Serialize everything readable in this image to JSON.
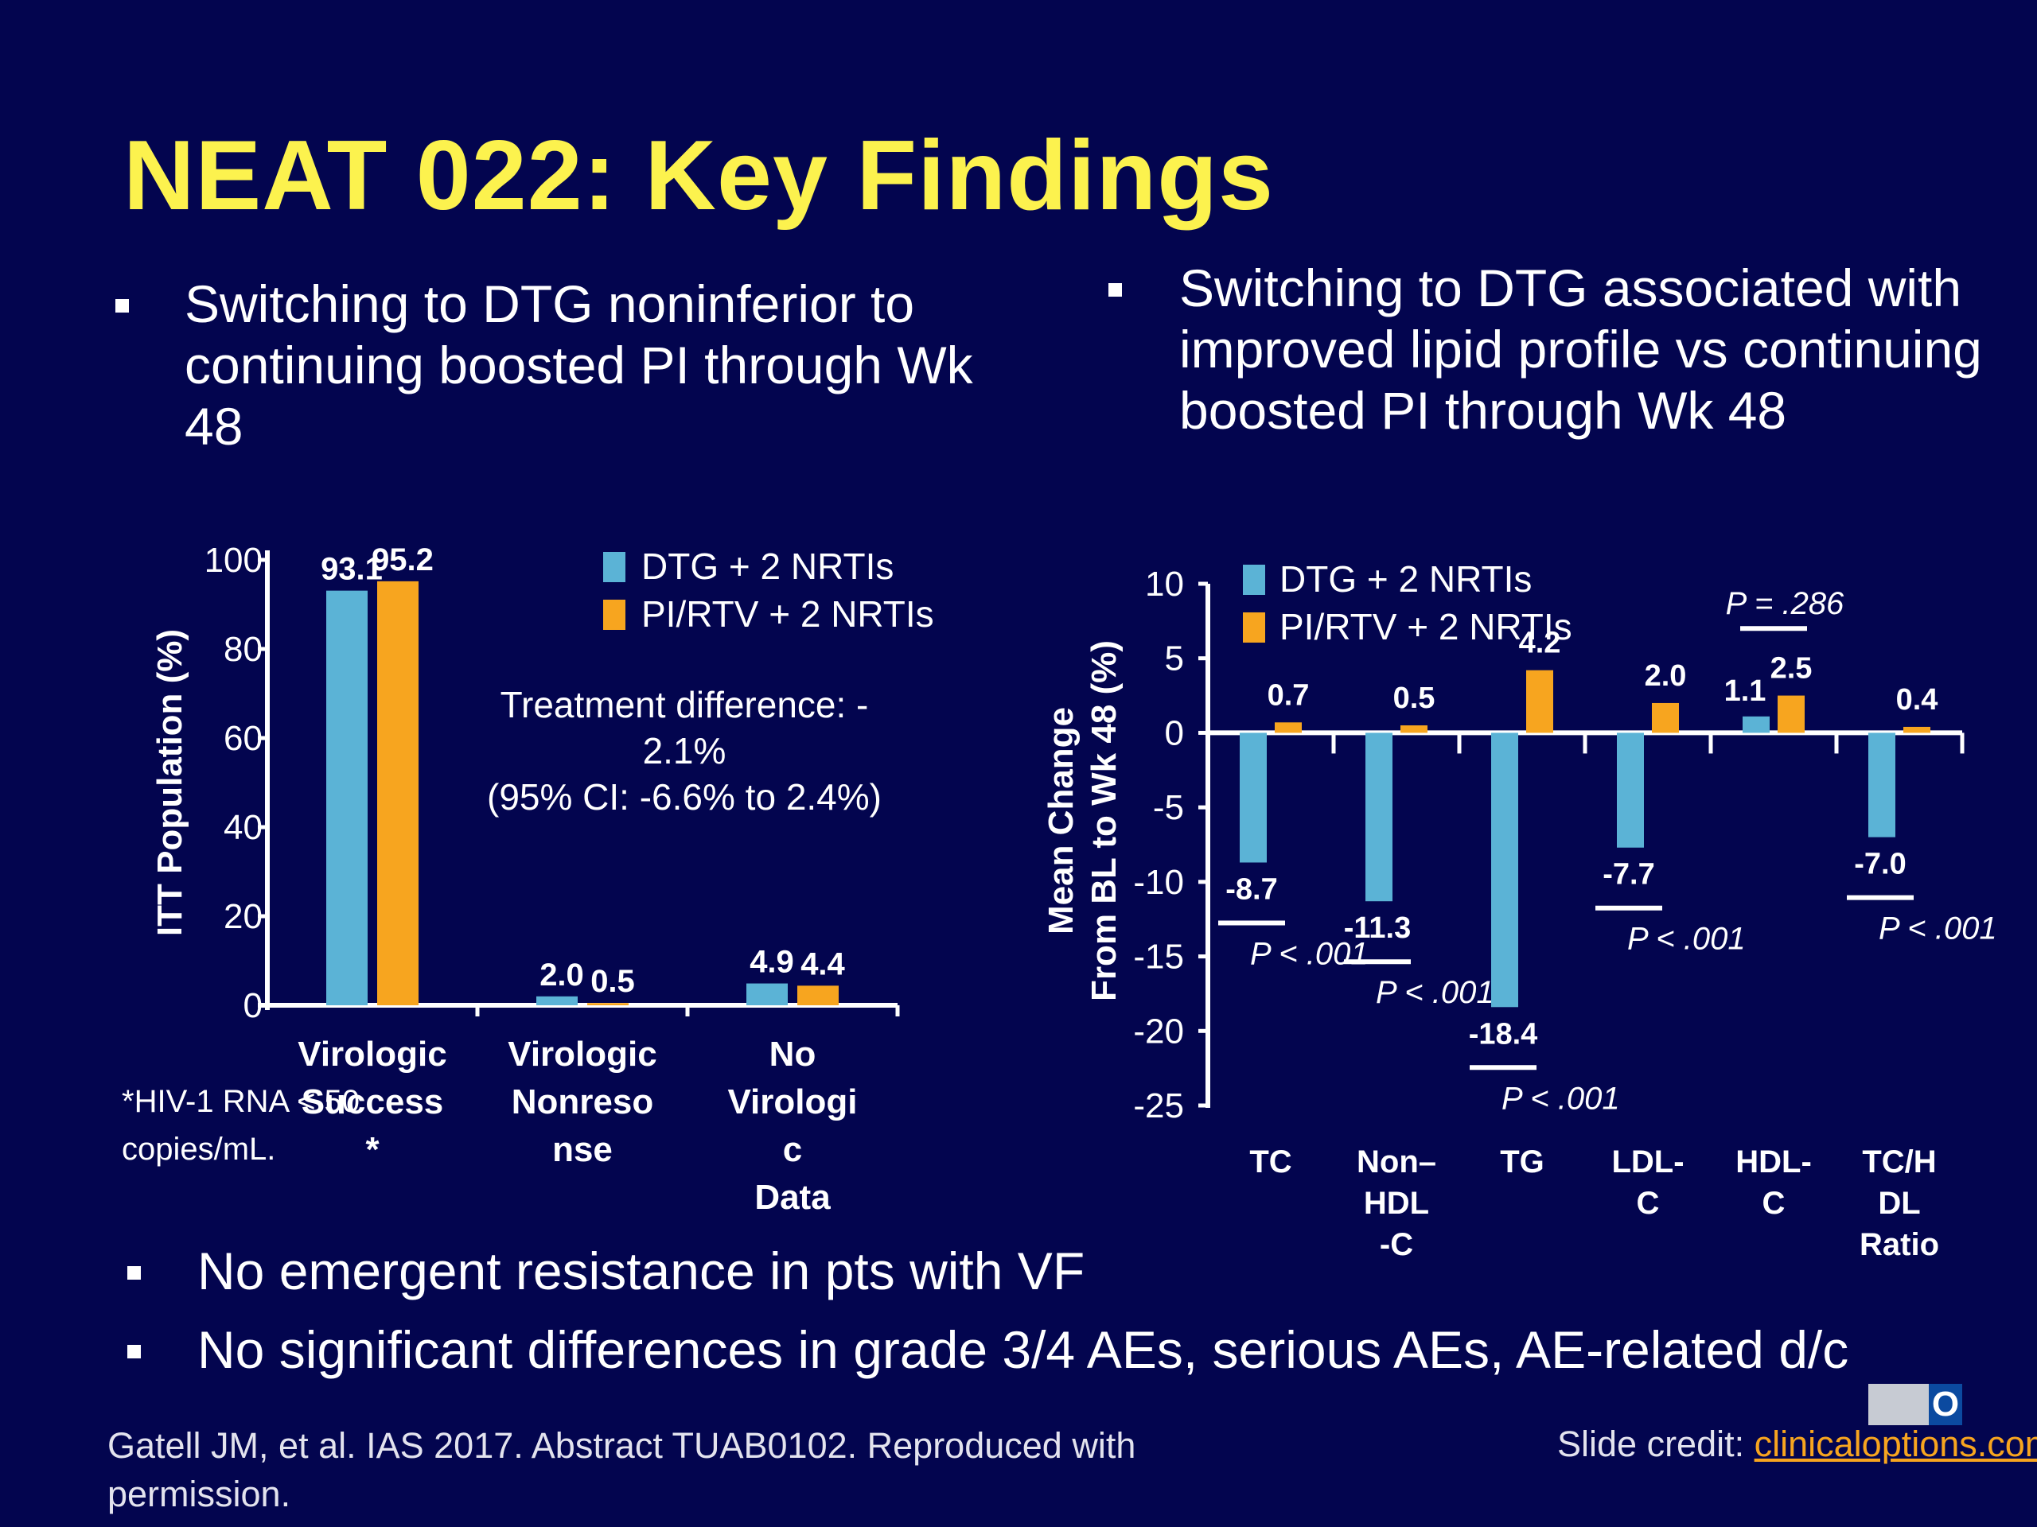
{
  "slide": {
    "title": "NEAT 022: Key Findings",
    "bullets": [
      "Switching to DTG noninferior to continuing boosted PI through Wk 48",
      "Switching to DTG associated with improved lipid profile vs continuing boosted PI through Wk 48",
      "No emergent resistance in pts with VF",
      "No significant differences in grade 3/4 AEs, serious AEs, AE-related d/c"
    ],
    "footnote": "*HIV-1 RNA < 50 copies/mL.",
    "citation": "Gatell JM, et al. IAS 2017. Abstract TUAB0102. Reproduced with permission.",
    "credit_label": "Slide credit: ",
    "credit_link": "clinicaloptions.com",
    "logo_text": "CCO"
  },
  "colors": {
    "background": "#03054f",
    "title": "#fcf24e",
    "dtg": "#5bb3d6",
    "pi": "#f7a51f",
    "text": "#ffffff"
  },
  "chart_data": [
    {
      "type": "bar",
      "ylabel": "ITT Population (%)",
      "ylim": [
        0,
        100
      ],
      "yticks": [
        0,
        20,
        40,
        60,
        80,
        100
      ],
      "categories": [
        "Virologic Success*",
        "Virologic Nonresponse",
        "No Virologic Data"
      ],
      "series": [
        {
          "name": "DTG + 2 NRTIs",
          "values": [
            93.1,
            2.0,
            4.9
          ],
          "labels": [
            "93.1",
            "2.0",
            "4.9"
          ]
        },
        {
          "name": "PI/RTV + 2 NRTIs",
          "values": [
            95.2,
            0.5,
            4.4
          ],
          "labels": [
            "95.2",
            "0.5",
            "4.4"
          ]
        }
      ],
      "annotation": "Treatment difference: -2.1% (95% CI: -6.6% to 2.4%)",
      "legend": "top-right"
    },
    {
      "type": "bar",
      "ylabel": "Mean Change From BL to Wk 48 (%)",
      "ylim": [
        -25,
        10
      ],
      "yticks": [
        10,
        5,
        0,
        -5,
        -10,
        -15,
        -20,
        -25
      ],
      "categories": [
        "TC",
        "Non–HDL-C",
        "TG",
        "LDL-C",
        "HDL-C",
        "TC/HDL Ratio"
      ],
      "series": [
        {
          "name": "DTG + 2 NRTIs",
          "values": [
            -8.7,
            -11.3,
            -18.4,
            -7.7,
            1.1,
            -7.0
          ],
          "labels": [
            "-8.7",
            "-11.3",
            "-18.4",
            "-7.7",
            "1.1",
            "-7.0"
          ]
        },
        {
          "name": "PI/RTV + 2 NRTIs",
          "values": [
            0.7,
            0.5,
            4.2,
            2.0,
            2.5,
            0.4
          ],
          "labels": [
            "0.7",
            "0.5",
            "4.2",
            "2.0",
            "2.5",
            "0.4"
          ]
        }
      ],
      "p_values": [
        "P < .001",
        "P < .001",
        "P < .001",
        "P < .001",
        "P = .286",
        "P < .001"
      ],
      "legend": "top-left"
    }
  ]
}
